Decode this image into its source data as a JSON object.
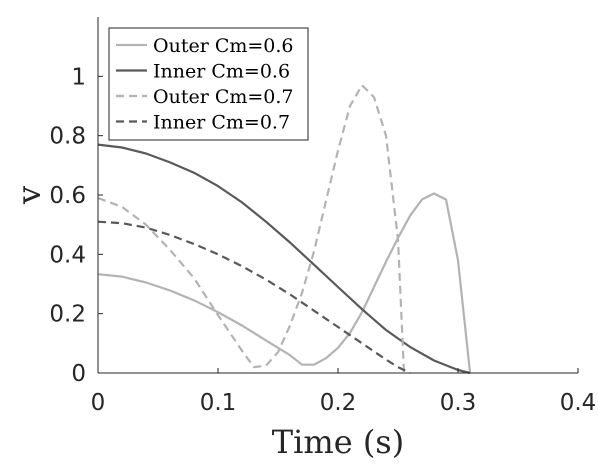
{
  "chart_data": {
    "type": "line",
    "xlabel": "Time (s)",
    "ylabel": "v",
    "xlim": [
      0,
      0.4
    ],
    "ylim": [
      0,
      1.2
    ],
    "xticks": [
      0,
      0.1,
      0.2,
      0.3,
      0.4
    ],
    "xtick_labels": [
      "0",
      "0.1",
      "0.2",
      "0.3",
      "0.4"
    ],
    "yticks": [
      0,
      0.2,
      0.4,
      0.6,
      0.8,
      1.0
    ],
    "ytick_labels": [
      "0",
      "0.2",
      "0.4",
      "0.6",
      "0.8",
      "1"
    ],
    "grid": false,
    "legend_position": "top-left",
    "series": [
      {
        "name": "Outer Cm=0.6",
        "color": "#b3b3b3",
        "dash": "solid",
        "points": [
          [
            0,
            0.333
          ],
          [
            0.02,
            0.325
          ],
          [
            0.04,
            0.305
          ],
          [
            0.06,
            0.278
          ],
          [
            0.08,
            0.245
          ],
          [
            0.1,
            0.205
          ],
          [
            0.12,
            0.16
          ],
          [
            0.14,
            0.11
          ],
          [
            0.16,
            0.06
          ],
          [
            0.17,
            0.028
          ],
          [
            0.18,
            0.028
          ],
          [
            0.19,
            0.05
          ],
          [
            0.2,
            0.085
          ],
          [
            0.21,
            0.135
          ],
          [
            0.22,
            0.205
          ],
          [
            0.23,
            0.29
          ],
          [
            0.24,
            0.375
          ],
          [
            0.25,
            0.455
          ],
          [
            0.26,
            0.53
          ],
          [
            0.27,
            0.585
          ],
          [
            0.28,
            0.605
          ],
          [
            0.29,
            0.585
          ],
          [
            0.3,
            0.38
          ],
          [
            0.31,
            0.002
          ]
        ]
      },
      {
        "name": "Inner Cm=0.6",
        "color": "#595959",
        "dash": "solid",
        "points": [
          [
            0,
            0.77
          ],
          [
            0.02,
            0.76
          ],
          [
            0.04,
            0.74
          ],
          [
            0.06,
            0.71
          ],
          [
            0.08,
            0.675
          ],
          [
            0.1,
            0.63
          ],
          [
            0.12,
            0.575
          ],
          [
            0.14,
            0.51
          ],
          [
            0.16,
            0.44
          ],
          [
            0.18,
            0.365
          ],
          [
            0.2,
            0.29
          ],
          [
            0.22,
            0.215
          ],
          [
            0.24,
            0.145
          ],
          [
            0.26,
            0.088
          ],
          [
            0.28,
            0.042
          ],
          [
            0.3,
            0.01
          ],
          [
            0.31,
            0
          ]
        ]
      },
      {
        "name": "Outer Cm=0.7",
        "color": "#b3b3b3",
        "dash": "dashed",
        "points": [
          [
            0,
            0.59
          ],
          [
            0.02,
            0.56
          ],
          [
            0.04,
            0.5
          ],
          [
            0.06,
            0.415
          ],
          [
            0.08,
            0.32
          ],
          [
            0.1,
            0.195
          ],
          [
            0.12,
            0.075
          ],
          [
            0.13,
            0.02
          ],
          [
            0.14,
            0.025
          ],
          [
            0.15,
            0.07
          ],
          [
            0.16,
            0.16
          ],
          [
            0.17,
            0.27
          ],
          [
            0.18,
            0.41
          ],
          [
            0.19,
            0.58
          ],
          [
            0.2,
            0.75
          ],
          [
            0.21,
            0.9
          ],
          [
            0.22,
            0.97
          ],
          [
            0.23,
            0.93
          ],
          [
            0.24,
            0.8
          ],
          [
            0.25,
            0.45
          ],
          [
            0.255,
            0
          ]
        ]
      },
      {
        "name": "Inner Cm=0.7",
        "color": "#595959",
        "dash": "dashed",
        "points": [
          [
            0,
            0.51
          ],
          [
            0.02,
            0.505
          ],
          [
            0.04,
            0.49
          ],
          [
            0.06,
            0.465
          ],
          [
            0.08,
            0.435
          ],
          [
            0.1,
            0.4
          ],
          [
            0.12,
            0.36
          ],
          [
            0.14,
            0.315
          ],
          [
            0.16,
            0.265
          ],
          [
            0.18,
            0.21
          ],
          [
            0.2,
            0.155
          ],
          [
            0.22,
            0.1
          ],
          [
            0.24,
            0.045
          ],
          [
            0.25,
            0.02
          ],
          [
            0.26,
            0
          ]
        ]
      }
    ]
  }
}
